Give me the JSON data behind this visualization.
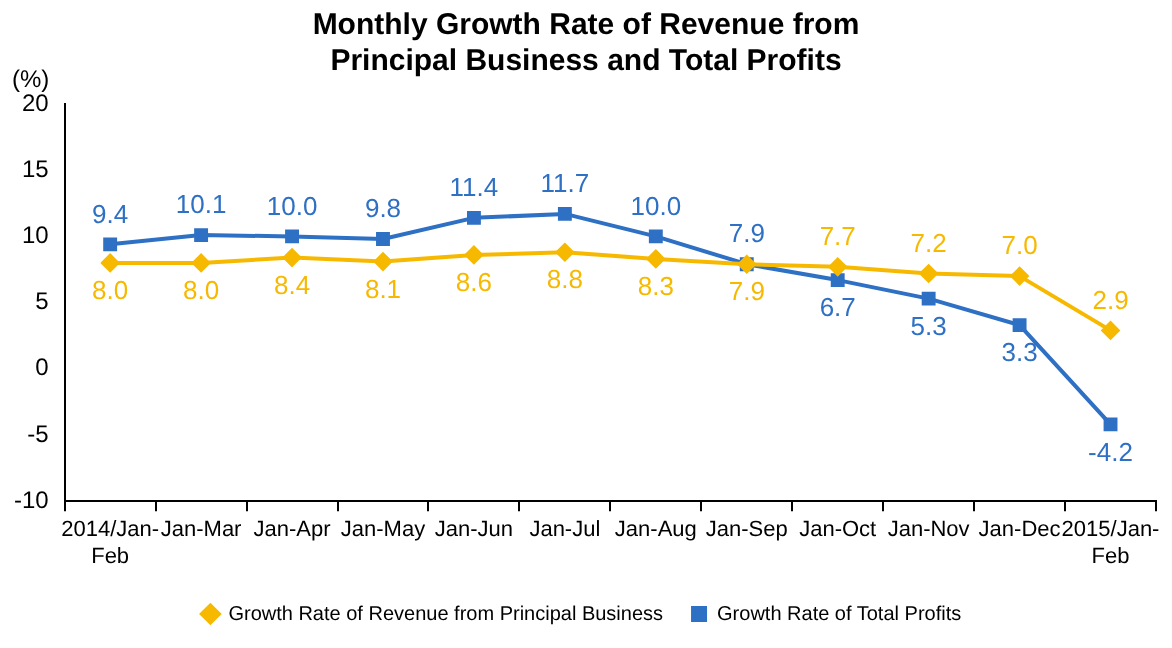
{
  "chart_data": {
    "type": "line",
    "title": "Monthly Growth Rate of Revenue from\nPrincipal Business and Total Profits",
    "ylabel": "(%)",
    "categories": [
      "2014/Jan-Feb",
      "Jan-Mar",
      "Jan-Apr",
      "Jan-May",
      "Jan-Jun",
      "Jan-Jul",
      "Jan-Aug",
      "Jan-Sep",
      "Jan-Oct",
      "Jan-Nov",
      "Jan-Dec",
      "2015/Jan-Feb"
    ],
    "series": [
      {
        "name": "Growth Rate of Revenue from Principal Business",
        "color": "#f7b900",
        "marker": "diamond",
        "values": [
          8.0,
          8.0,
          8.4,
          8.1,
          8.6,
          8.8,
          8.3,
          7.9,
          7.7,
          7.2,
          7.0,
          2.9
        ],
        "value_labels": [
          "8.0",
          "8.0",
          "8.4",
          "8.1",
          "8.6",
          "8.8",
          "8.3",
          "7.9",
          "7.7",
          "7.2",
          "7.0",
          "2.9"
        ]
      },
      {
        "name": "Growth Rate of Total Profits",
        "color": "#2e70c4",
        "marker": "square",
        "values": [
          9.4,
          10.1,
          10.0,
          9.8,
          11.4,
          11.7,
          10.0,
          7.9,
          6.7,
          5.3,
          3.3,
          -4.2
        ],
        "value_labels": [
          "9.4",
          "10.1",
          "10.0",
          "9.8",
          "11.4",
          "11.7",
          "10.0",
          "7.9",
          "6.7",
          "5.3",
          "3.3",
          "-4.2"
        ]
      }
    ],
    "ylim": [
      -10,
      20
    ],
    "yticks": [
      -10,
      -5,
      0,
      5,
      10,
      15,
      20
    ],
    "grid": false,
    "legend": "bottom",
    "line_style": "solid"
  }
}
